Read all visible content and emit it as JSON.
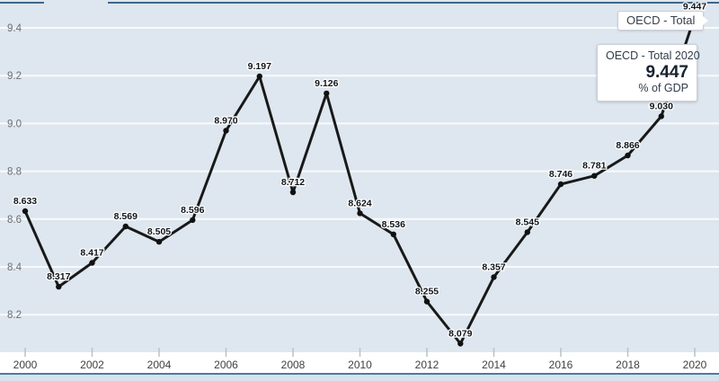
{
  "chart_data": {
    "type": "line",
    "series": [
      {
        "name": "OECD - Total",
        "values": [
          8.633,
          8.317,
          8.417,
          8.569,
          8.505,
          8.596,
          8.97,
          9.197,
          8.712,
          9.126,
          8.624,
          8.536,
          8.255,
          8.079,
          8.357,
          8.545,
          8.746,
          8.781,
          8.866,
          9.03,
          9.447
        ],
        "point_labels": [
          "8.633",
          "8.317",
          "8.417",
          "8.569",
          "8.505",
          "8.596",
          "8.970",
          "9.197",
          "8.712",
          "9.126",
          "8.624",
          "8.536",
          "8.255",
          "8.079",
          "8.357",
          "8.545",
          "8.746",
          "8.781",
          "8.866",
          "9.030",
          "9.447"
        ]
      }
    ],
    "x": [
      2000,
      2001,
      2002,
      2003,
      2004,
      2005,
      2006,
      2007,
      2008,
      2009,
      2010,
      2011,
      2012,
      2013,
      2014,
      2015,
      2016,
      2017,
      2018,
      2019,
      2020
    ],
    "xticks": [
      2000,
      2002,
      2004,
      2006,
      2008,
      2010,
      2012,
      2014,
      2016,
      2018,
      2020
    ],
    "yticks": [
      8.2,
      8.4,
      8.6,
      8.8,
      9.0,
      9.2,
      9.4
    ],
    "ytick_labels": [
      "8.2",
      "8.4",
      "8.6",
      "8.8",
      "9.0",
      "9.2",
      "9.4"
    ],
    "ylim": [
      8.05,
      9.5
    ],
    "ylabel": "% of GDP",
    "title": "",
    "grid": true,
    "legend_position": "flag-on-last-point"
  },
  "legend": {
    "label": "OECD - Total"
  },
  "tooltip": {
    "title": "OECD - Total 2020",
    "value": "9.447",
    "unit": "% of GDP"
  },
  "colors": {
    "plot_background": "#dee7ef",
    "gridline": "#f8fbfd",
    "series_line": "#191919",
    "point_fill": "#111111",
    "axis_label": "#6f6f6f",
    "x_label": "#404040",
    "tick": "#b6c2cc",
    "top_border": "#41678a",
    "navigator_line": "#4c7ca0",
    "navigator_strip": "#d8e2ec",
    "tooltip_border": "#c9ced6"
  }
}
